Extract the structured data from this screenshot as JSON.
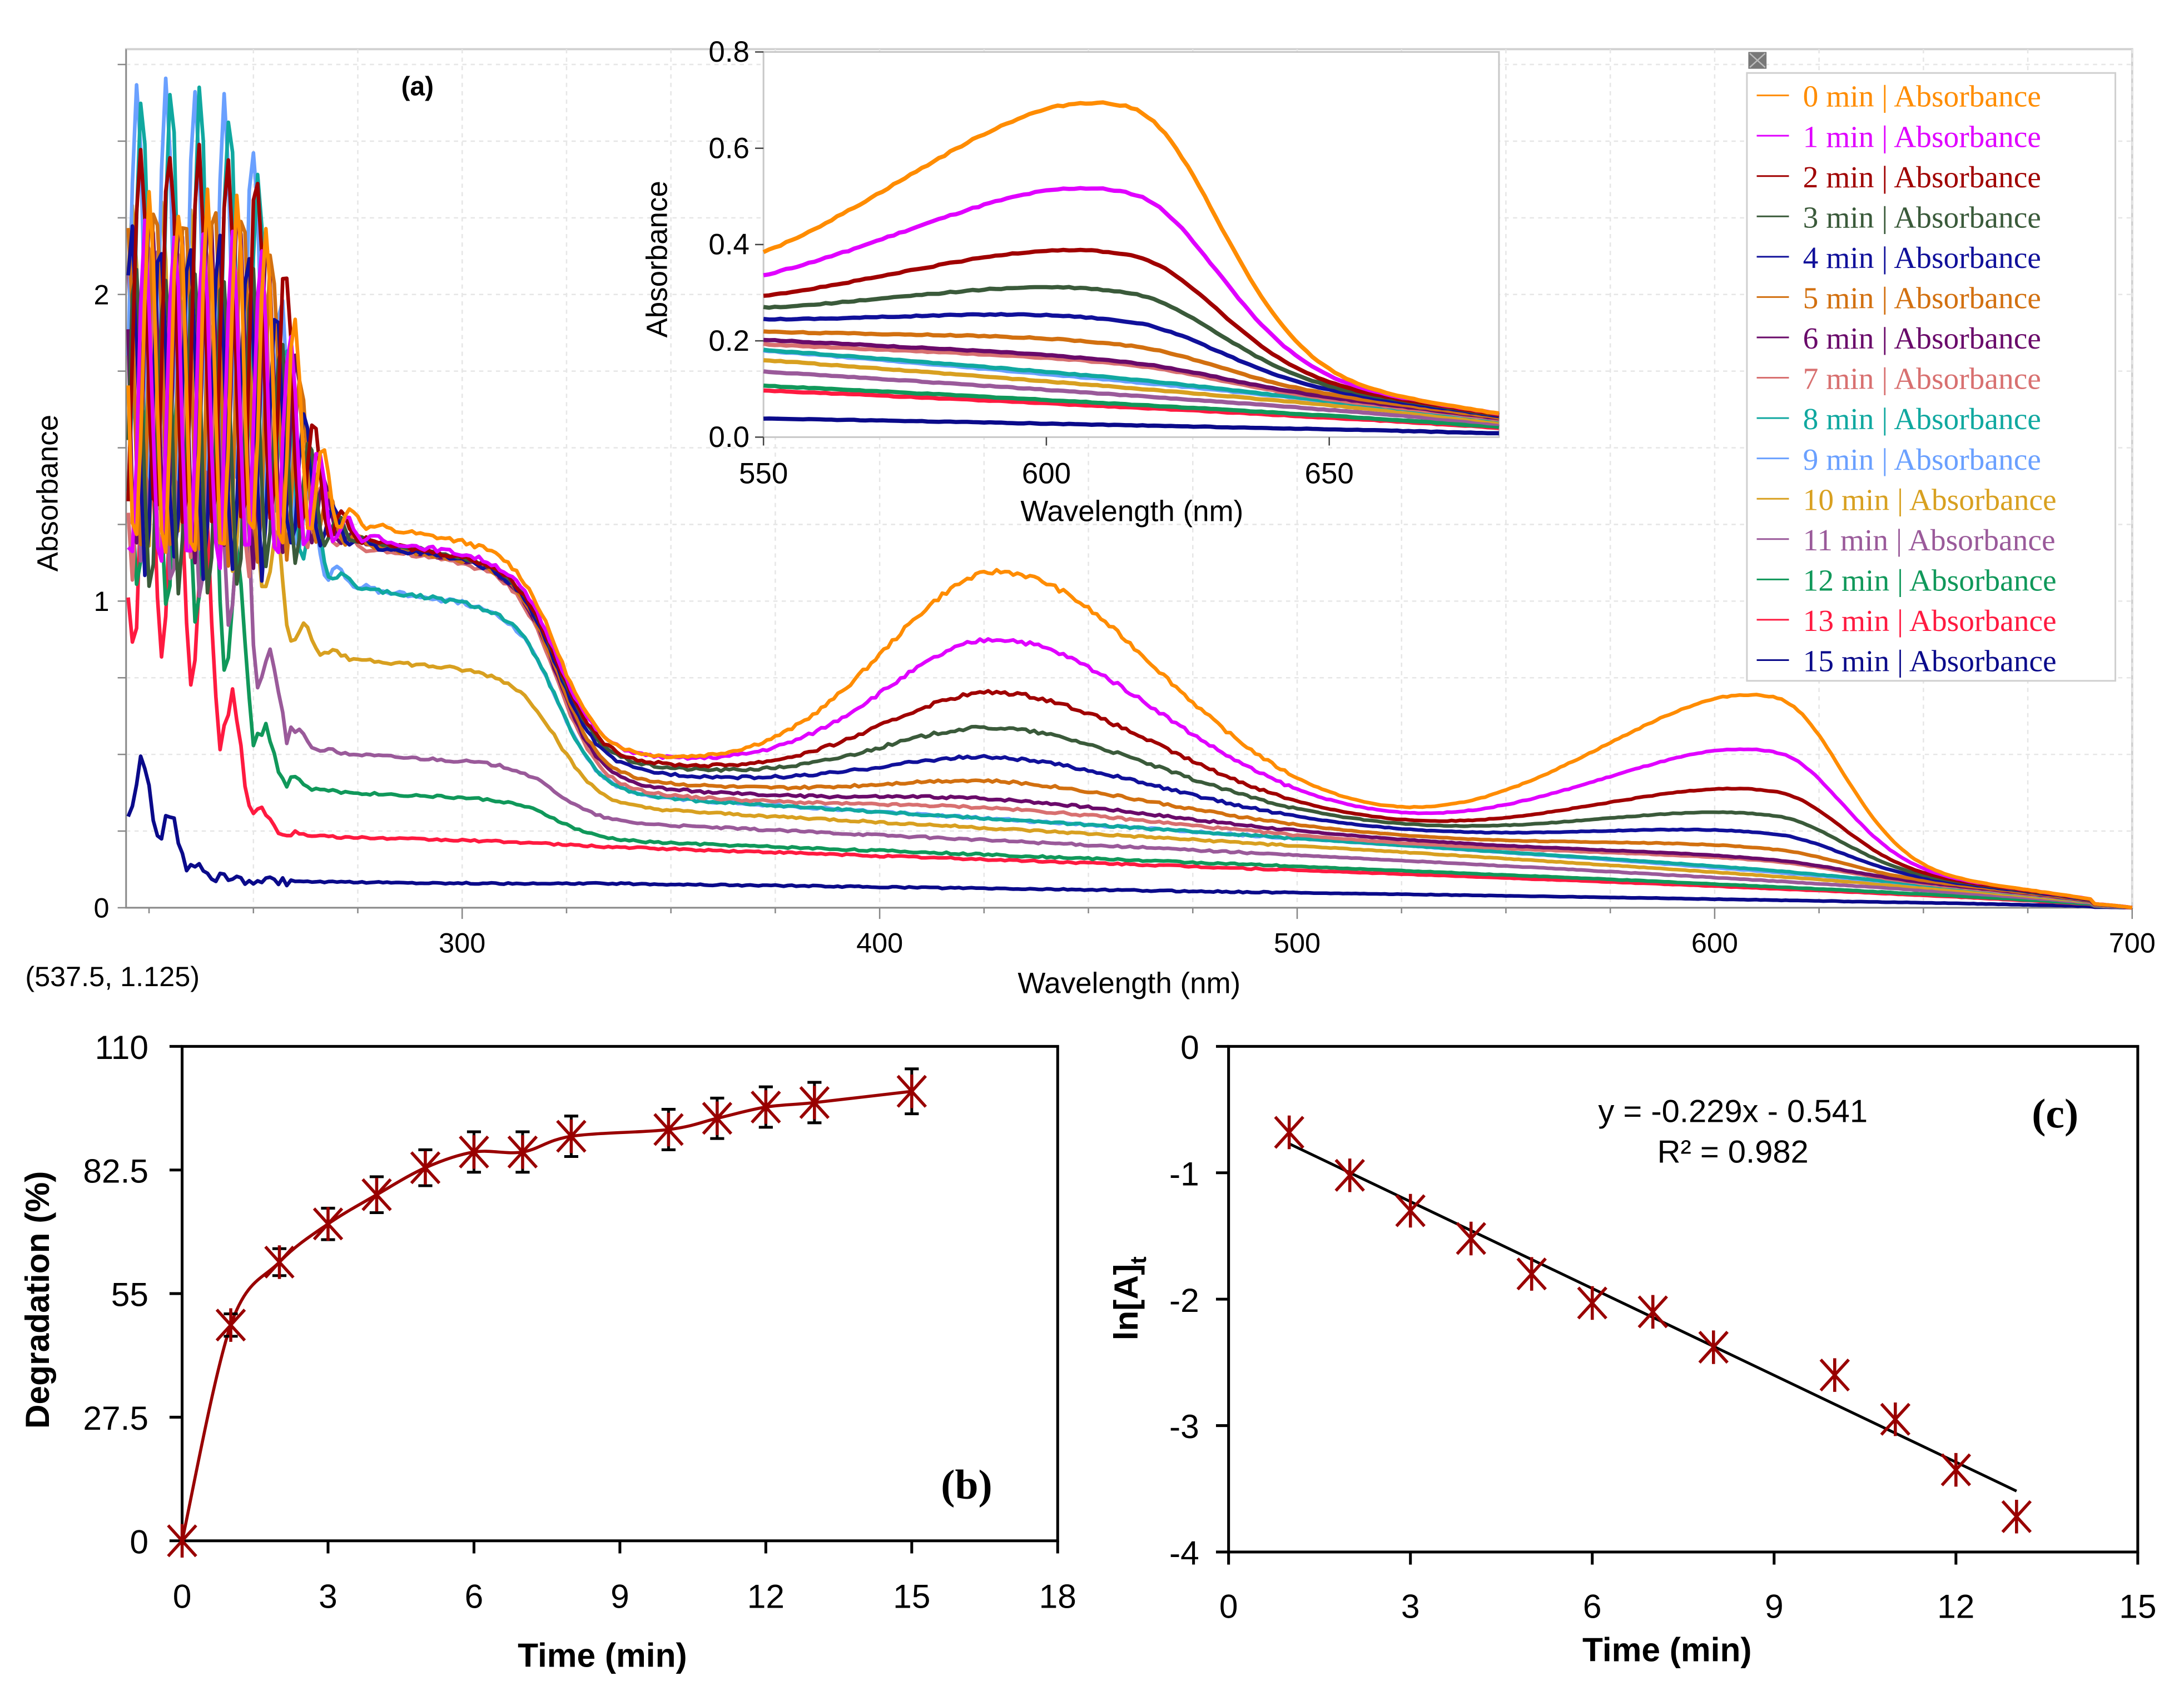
{
  "chart_data": [
    {
      "type": "line",
      "panel_label": "(a)",
      "xlabel": "Wavelength (nm)",
      "ylabel": "Absorbance",
      "xlim": [
        219.5,
        700
      ],
      "ylim": [
        0,
        2.8
      ],
      "x_ticks": [
        "300",
        "400",
        "500",
        "600",
        "700"
      ],
      "x_tick_values": [
        300,
        400,
        500,
        600,
        700
      ],
      "y_ticks": [
        "0",
        "1",
        "2"
      ],
      "y_tick_values": [
        0,
        1,
        2
      ],
      "grid": true,
      "cursor_readout": "(537.5, 1.125)",
      "legend_position": "top-right",
      "series_model_note_units": "absorbance values at characteristic wavelengths",
      "series": [
        {
          "name": "0 min | Absorbance",
          "color": "#ff8c00",
          "uv_max": 2.3,
          "uv_edge_nm": 262,
          "plateau_300": 1.2,
          "level_350": 0.5,
          "peak_430": 1.13,
          "peak_615": 0.69
        },
        {
          "name": "1 min | Absorbance",
          "color": "#e000ff",
          "uv_max": 2.2,
          "uv_edge_nm": 262,
          "plateau_300": 1.16,
          "level_350": 0.5,
          "peak_430": 0.9,
          "peak_615": 0.51
        },
        {
          "name": "2 min | Absorbance",
          "color": "#a00000",
          "uv_max": 2.5,
          "uv_edge_nm": 261,
          "plateau_300": 1.15,
          "level_350": 0.48,
          "peak_430": 0.72,
          "peak_615": 0.38
        },
        {
          "name": "3 min | Absorbance",
          "color": "#3a5a3a",
          "uv_max": 2.1,
          "uv_edge_nm": 261,
          "plateau_300": 1.15,
          "level_350": 0.47,
          "peak_430": 0.6,
          "peak_615": 0.3
        },
        {
          "name": "4 min | Absorbance",
          "color": "#10109a",
          "uv_max": 2.2,
          "uv_edge_nm": 261,
          "plateau_300": 1.14,
          "level_350": 0.45,
          "peak_430": 0.5,
          "peak_615": 0.24
        },
        {
          "name": "5 min | Absorbance",
          "color": "#d27010",
          "uv_max": 2.3,
          "uv_edge_nm": 261,
          "plateau_300": 1.14,
          "level_350": 0.42,
          "peak_430": 0.42,
          "peak_615": 0.19
        },
        {
          "name": "6 min | Absorbance",
          "color": "#6a0a6a",
          "uv_max": 2.3,
          "uv_edge_nm": 261,
          "plateau_300": 1.14,
          "level_350": 0.4,
          "peak_430": 0.36,
          "peak_615": 0.155
        },
        {
          "name": "7 min | Absorbance",
          "color": "#d87070",
          "uv_max": 2.2,
          "uv_edge_nm": 260,
          "plateau_300": 1.13,
          "level_350": 0.38,
          "peak_430": 0.33,
          "peak_615": 0.15
        },
        {
          "name": "8 min | Absorbance",
          "color": "#10a8a0",
          "uv_max": 2.65,
          "uv_edge_nm": 258,
          "plateau_300": 1.0,
          "level_350": 0.37,
          "peak_430": 0.28,
          "peak_615": 0.12
        },
        {
          "name": "9 min | Absorbance",
          "color": "#6aa0ff",
          "uv_max": 2.7,
          "uv_edge_nm": 258,
          "plateau_300": 1.0,
          "level_350": 0.37,
          "peak_430": 0.27,
          "peak_615": 0.115
        },
        {
          "name": "10 min | Absorbance",
          "color": "#d8a020",
          "uv_max": 2.3,
          "uv_edge_nm": 252,
          "plateau_300": 0.78,
          "level_350": 0.33,
          "peak_430": 0.2,
          "peak_615": 0.09
        },
        {
          "name": "11 min | Absorbance",
          "color": "#9a5a9a",
          "uv_max": 2.1,
          "uv_edge_nm": 249,
          "plateau_300": 0.48,
          "level_350": 0.28,
          "peak_430": 0.17,
          "peak_615": 0.07
        },
        {
          "name": "12 min | Absorbance",
          "color": "#10985a",
          "uv_max": 2.0,
          "uv_edge_nm": 246,
          "plateau_300": 0.36,
          "level_350": 0.22,
          "peak_430": 0.12,
          "peak_615": 0.05
        },
        {
          "name": "13 min | Absorbance",
          "color": "#ff1a40",
          "uv_max": 1.7,
          "uv_edge_nm": 242,
          "plateau_300": 0.22,
          "level_350": 0.2,
          "peak_430": 0.09,
          "peak_615": 0.04
        },
        {
          "name": "15 min | Absorbance",
          "color": "#0a0a8a",
          "uv_max": 0.6,
          "uv_edge_nm": 229,
          "plateau_300": 0.08,
          "level_350": 0.08,
          "peak_430": 0.04,
          "peak_615": 0.01
        }
      ],
      "inset": {
        "xlabel": "Wavelength (nm)",
        "ylabel": "Absorbance",
        "xlim": [
          550,
          680
        ],
        "ylim": [
          0,
          0.8
        ],
        "x_ticks": [
          "550",
          "600",
          "650"
        ],
        "x_tick_values": [
          550,
          600,
          650
        ],
        "y_ticks": [
          "0.0",
          "0.2",
          "0.4",
          "0.6",
          "0.8"
        ],
        "y_tick_values": [
          0,
          0.2,
          0.4,
          0.6,
          0.8
        ]
      }
    },
    {
      "type": "line",
      "panel_label": "(b)",
      "xlabel": "Time (min)",
      "ylabel": "Degradation (%)",
      "xlim": [
        0,
        18
      ],
      "ylim": [
        0,
        110
      ],
      "x_ticks": [
        "0",
        "3",
        "6",
        "9",
        "12",
        "15",
        "18"
      ],
      "x_tick_values": [
        0,
        3,
        6,
        9,
        12,
        15,
        18
      ],
      "y_ticks": [
        "0",
        "27.5",
        "55",
        "82.5",
        "110"
      ],
      "y_tick_values": [
        0,
        27.5,
        55,
        82.5,
        110
      ],
      "x": [
        0,
        1,
        2,
        3,
        4,
        5,
        6,
        7,
        8,
        10,
        11,
        12,
        13,
        15
      ],
      "y": [
        0,
        48,
        62,
        70.5,
        77,
        83,
        86.5,
        86.5,
        90,
        91.5,
        94,
        96.5,
        97.5,
        100
      ],
      "error": [
        0,
        2.5,
        3,
        3.5,
        4,
        4,
        4.5,
        4.5,
        4.5,
        4.5,
        4.5,
        4.5,
        4.5,
        5
      ],
      "color": "#990000"
    },
    {
      "type": "scatter",
      "panel_label": "(c)",
      "xlabel": "Time (min)",
      "ylabel": "ln[A]",
      "ylabel_sub": "t",
      "xlim": [
        0,
        15
      ],
      "ylim": [
        -4,
        0
      ],
      "x_ticks": [
        "0",
        "3",
        "6",
        "9",
        "12",
        "15"
      ],
      "x_tick_values": [
        0,
        3,
        6,
        9,
        12,
        15
      ],
      "y_ticks": [
        "0",
        "-1",
        "-2",
        "-3",
        "-4"
      ],
      "y_tick_values": [
        0,
        -1,
        -2,
        -3,
        -4
      ],
      "x": [
        1,
        2,
        3,
        4,
        5,
        6,
        7,
        8,
        10,
        11,
        12,
        13
      ],
      "y": [
        -0.68,
        -1.02,
        -1.3,
        -1.52,
        -1.8,
        -2.03,
        -2.1,
        -2.38,
        -2.6,
        -2.95,
        -3.35,
        -3.72
      ],
      "fit": {
        "slope": -0.229,
        "intercept": -0.541,
        "x_range": [
          1,
          13
        ]
      },
      "equation": "y = -0.229x - 0.541",
      "r_squared": "R² = 0.982",
      "color": "#990000"
    }
  ]
}
